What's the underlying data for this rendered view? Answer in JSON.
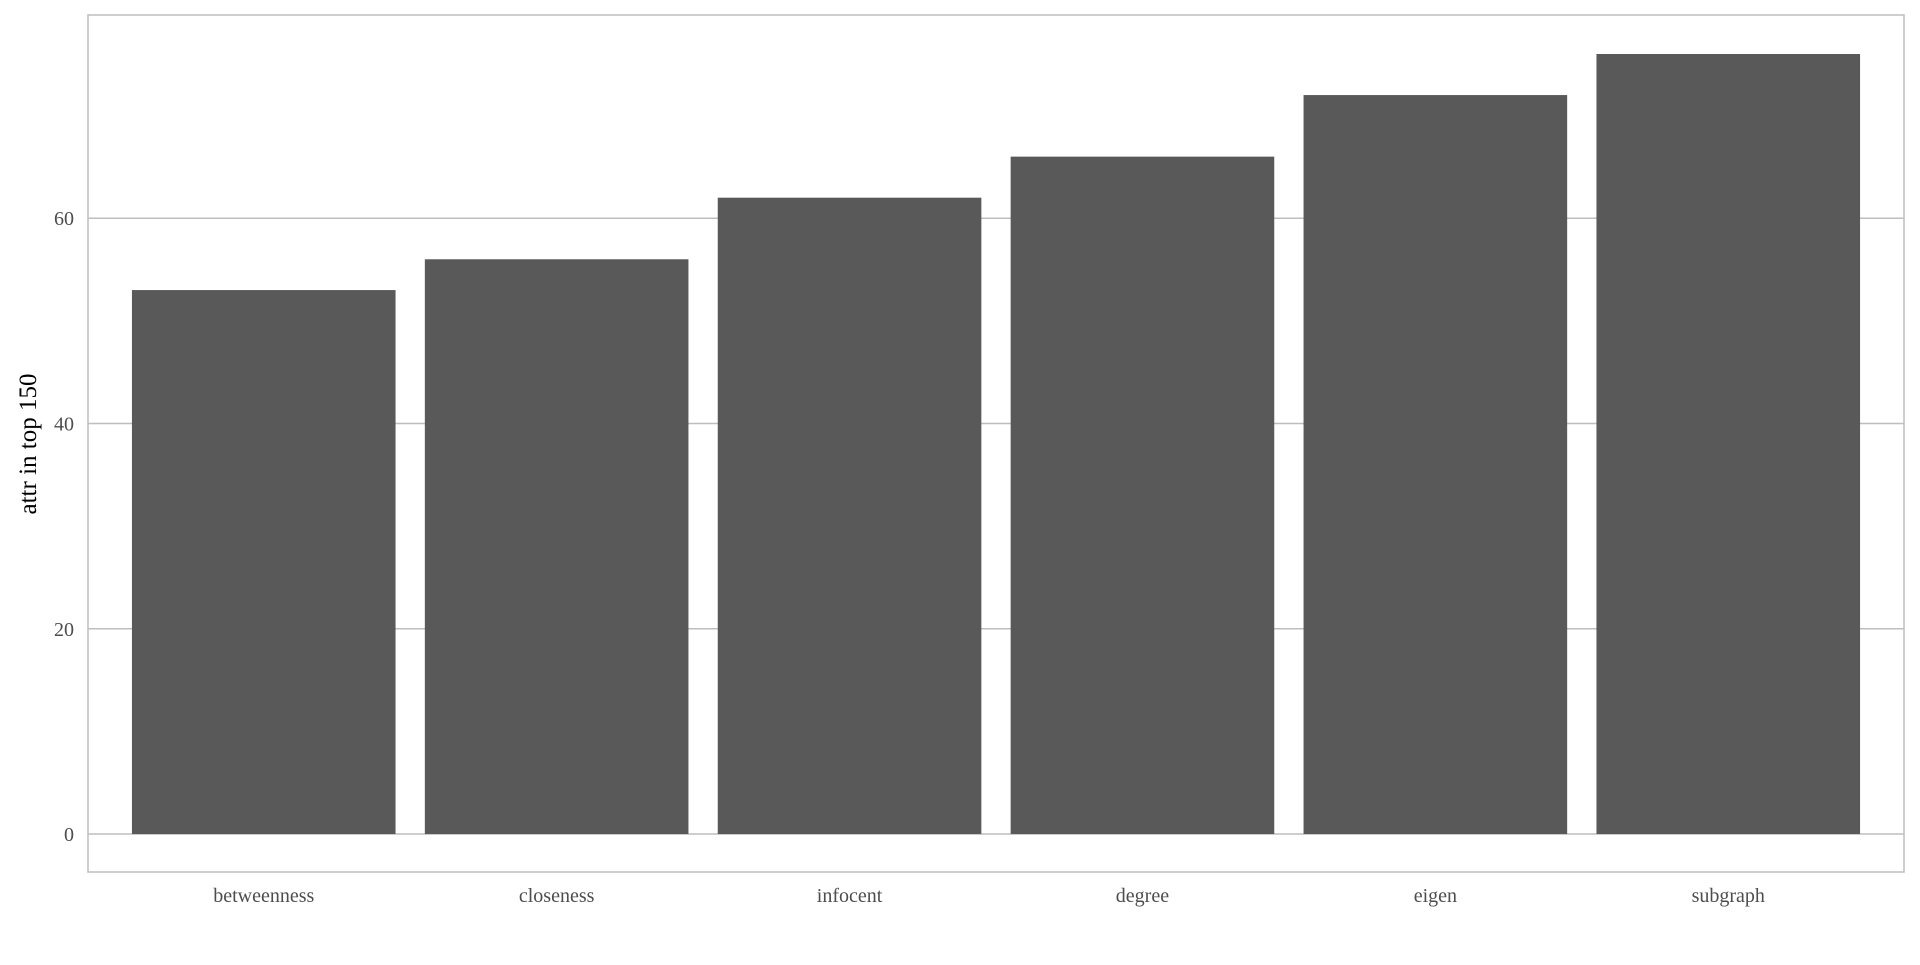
{
  "chart_data": {
    "type": "bar",
    "title": "",
    "xlabel": "",
    "ylabel": "attr in top 150",
    "categories": [
      "betweenness",
      "closeness",
      "infocent",
      "degree",
      "eigen",
      "subgraph"
    ],
    "values": [
      53,
      56,
      62,
      66,
      72,
      76
    ],
    "yticks": [
      0,
      20,
      40,
      60
    ],
    "ytick_labels": [
      "0",
      "20",
      "40",
      "60"
    ],
    "ylim": [
      -3.7,
      79.8
    ],
    "grid": true,
    "bar_color": "#595959",
    "grid_color": "#bebebe",
    "legend": "none"
  }
}
